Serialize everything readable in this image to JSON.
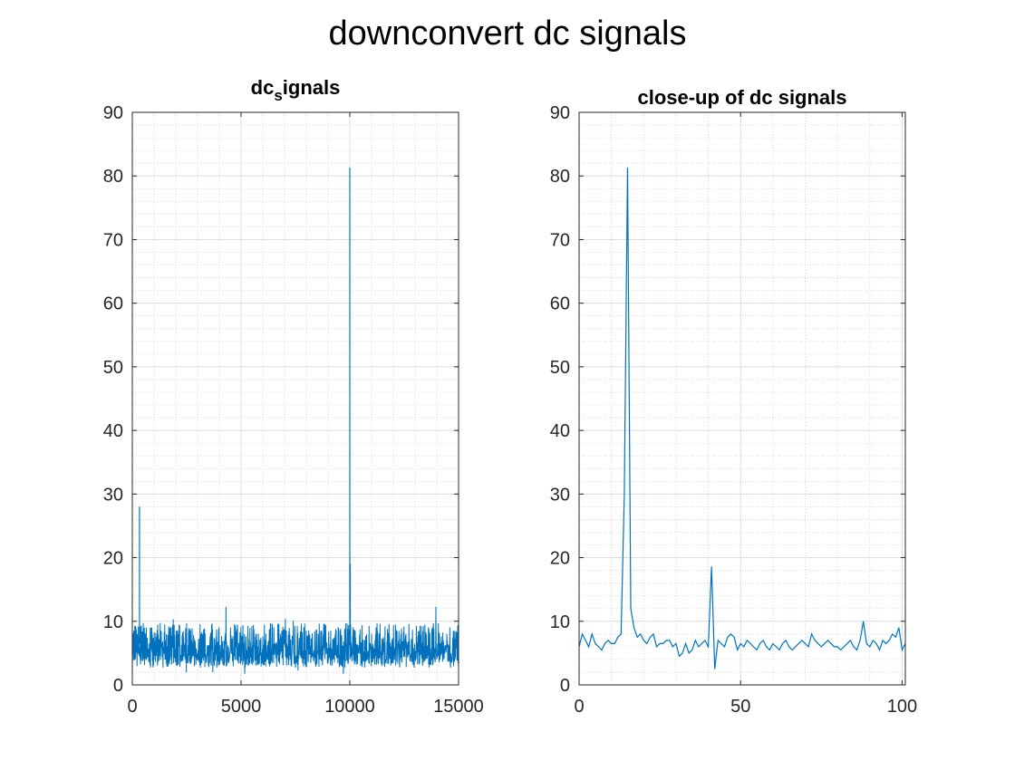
{
  "figure": {
    "suptitle": "downconvert dc signals"
  },
  "chart_data": [
    {
      "type": "line",
      "title_main": "dc",
      "title_sub": "s",
      "title_rest": "ignals",
      "xlabel": "",
      "ylabel": "",
      "xlim": [
        0,
        15000
      ],
      "ylim": [
        0,
        90
      ],
      "xticks": [
        0,
        5000,
        10000,
        15000
      ],
      "yticks": [
        0,
        10,
        20,
        30,
        40,
        50,
        60,
        70,
        80,
        90
      ],
      "grid": true,
      "minor_grid": true,
      "color": "#0072BD",
      "noise_band": {
        "x_start": 0,
        "x_end": 15000,
        "typical_low": 3,
        "typical_high": 9,
        "mean": 6.5
      },
      "series": [
        {
          "values_note": "dense noisy signal",
          "x": [
            0,
            300,
            330,
            360,
            390,
            420,
            9980,
            10000,
            10010,
            10020,
            10030,
            10040,
            12000,
            15000
          ],
          "y": [
            6,
            6.5,
            28,
            6,
            6.5,
            6,
            6.5,
            81.3,
            6,
            19,
            6,
            6.5,
            10.5,
            6
          ]
        }
      ]
    },
    {
      "type": "line",
      "title": "close-up of dc signals",
      "xlabel": "",
      "ylabel": "",
      "xlim": [
        0,
        101
      ],
      "ylim": [
        0,
        90
      ],
      "xticks": [
        0,
        50,
        100
      ],
      "yticks": [
        0,
        10,
        20,
        30,
        40,
        50,
        60,
        70,
        80,
        90
      ],
      "grid": true,
      "minor_grid": true,
      "color": "#0072BD",
      "series": [
        {
          "x": [
            0,
            1,
            2,
            3,
            4,
            5,
            6,
            7,
            8,
            9,
            10,
            11,
            12,
            13,
            14,
            15,
            16,
            17,
            18,
            19,
            20,
            21,
            22,
            23,
            24,
            25,
            26,
            27,
            28,
            29,
            30,
            31,
            32,
            33,
            34,
            35,
            36,
            37,
            38,
            39,
            40,
            41,
            42,
            43,
            44,
            45,
            46,
            47,
            48,
            49,
            50,
            51,
            52,
            53,
            54,
            55,
            56,
            57,
            58,
            59,
            60,
            61,
            62,
            63,
            64,
            65,
            66,
            67,
            68,
            69,
            70,
            71,
            72,
            73,
            74,
            75,
            76,
            77,
            78,
            79,
            80,
            81,
            82,
            83,
            84,
            85,
            86,
            87,
            88,
            89,
            90,
            91,
            92,
            93,
            94,
            95,
            96,
            97,
            98,
            99,
            100,
            101
          ],
          "y": [
            6,
            8,
            7,
            6,
            8,
            6.5,
            6,
            5.5,
            6.5,
            7,
            6.5,
            6.5,
            7.5,
            8,
            30,
            81.3,
            12,
            9,
            7.5,
            8,
            7,
            6.5,
            7.5,
            8,
            6,
            6.5,
            6.5,
            7,
            7,
            6,
            6.5,
            4.5,
            5,
            6.5,
            5,
            5.5,
            7,
            6,
            6.5,
            7,
            6,
            18.6,
            2.5,
            7,
            6.5,
            6,
            7.5,
            8,
            7.5,
            5.5,
            6.5,
            6,
            7,
            6.5,
            6,
            5.5,
            6.5,
            7,
            6,
            5.5,
            6.5,
            6,
            5.5,
            6.5,
            7,
            6,
            5.5,
            6,
            6.5,
            7,
            6.5,
            6,
            8,
            7,
            6.5,
            6,
            6.5,
            7,
            6.5,
            6,
            6,
            5.5,
            6,
            6.5,
            7,
            6,
            5.5,
            7,
            10,
            6.5,
            6,
            7,
            6.5,
            5.5,
            7,
            6.5,
            7,
            8,
            7.5,
            9,
            5.5,
            6.5
          ]
        }
      ]
    }
  ]
}
